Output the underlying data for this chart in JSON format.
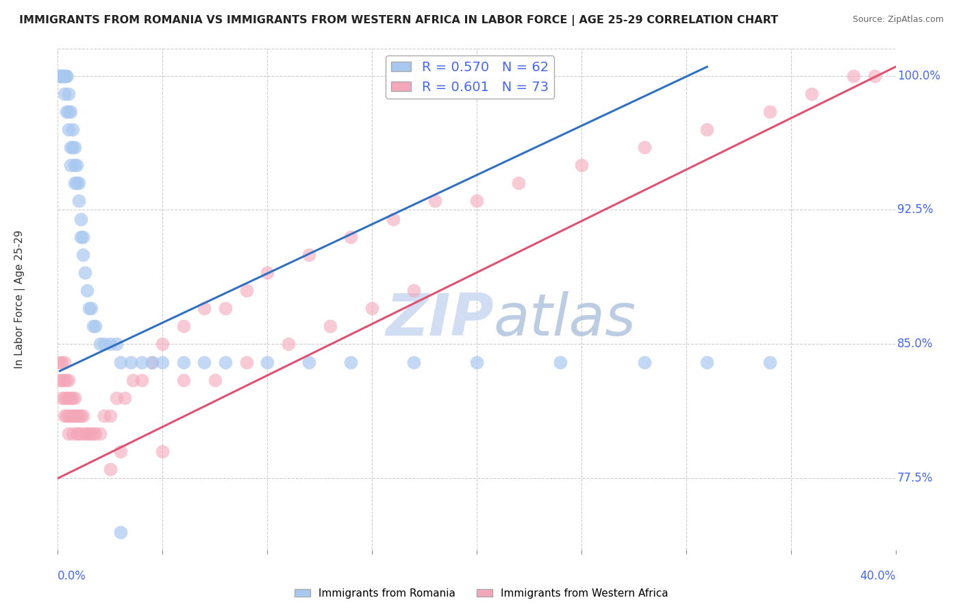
{
  "title": "IMMIGRANTS FROM ROMANIA VS IMMIGRANTS FROM WESTERN AFRICA IN LABOR FORCE | AGE 25-29 CORRELATION CHART",
  "source": "Source: ZipAtlas.com",
  "ylabel": "In Labor Force | Age 25-29",
  "xlim": [
    0.0,
    0.4
  ],
  "ylim": [
    0.735,
    1.015
  ],
  "romania_R": 0.57,
  "romania_N": 62,
  "western_africa_R": 0.601,
  "western_africa_N": 73,
  "romania_color": "#A8C8F0",
  "western_africa_color": "#F4A7B9",
  "romania_line_color": "#3070C0",
  "western_africa_line_color": "#E05070",
  "background_color": "#FFFFFF",
  "grid_color": "#CCCCCC",
  "axis_label_color": "#4466FF",
  "title_color": "#222222",
  "watermark_color": "#C8D8F0",
  "ytick_positions": [
    0.775,
    0.85,
    0.925,
    1.0
  ],
  "ytick_labels": [
    "77.5%",
    "85.0%",
    "92.5%",
    "100.0%"
  ],
  "romania_x": [
    0.001,
    0.001,
    0.001,
    0.002,
    0.002,
    0.002,
    0.002,
    0.002,
    0.003,
    0.003,
    0.003,
    0.003,
    0.004,
    0.004,
    0.004,
    0.005,
    0.005,
    0.005,
    0.006,
    0.006,
    0.006,
    0.007,
    0.007,
    0.008,
    0.008,
    0.008,
    0.009,
    0.009,
    0.01,
    0.01,
    0.011,
    0.011,
    0.012,
    0.012,
    0.013,
    0.014,
    0.015,
    0.016,
    0.017,
    0.018,
    0.02,
    0.022,
    0.025,
    0.028,
    0.03,
    0.035,
    0.04,
    0.045,
    0.05,
    0.06,
    0.07,
    0.08,
    0.1,
    0.12,
    0.14,
    0.17,
    0.2,
    0.24,
    0.28,
    0.31,
    0.34,
    0.03
  ],
  "romania_y": [
    1.0,
    1.0,
    1.0,
    1.0,
    1.0,
    1.0,
    1.0,
    1.0,
    1.0,
    1.0,
    1.0,
    0.99,
    1.0,
    1.0,
    0.98,
    0.99,
    0.98,
    0.97,
    0.96,
    0.98,
    0.95,
    0.97,
    0.96,
    0.96,
    0.95,
    0.94,
    0.95,
    0.94,
    0.94,
    0.93,
    0.92,
    0.91,
    0.91,
    0.9,
    0.89,
    0.88,
    0.87,
    0.87,
    0.86,
    0.86,
    0.85,
    0.85,
    0.85,
    0.85,
    0.84,
    0.84,
    0.84,
    0.84,
    0.84,
    0.84,
    0.84,
    0.84,
    0.84,
    0.84,
    0.84,
    0.84,
    0.84,
    0.84,
    0.84,
    0.84,
    0.84,
    0.745
  ],
  "western_africa_x": [
    0.001,
    0.001,
    0.002,
    0.002,
    0.002,
    0.003,
    0.003,
    0.003,
    0.003,
    0.004,
    0.004,
    0.004,
    0.005,
    0.005,
    0.005,
    0.005,
    0.006,
    0.006,
    0.007,
    0.007,
    0.007,
    0.008,
    0.008,
    0.009,
    0.009,
    0.01,
    0.01,
    0.011,
    0.011,
    0.012,
    0.013,
    0.014,
    0.015,
    0.016,
    0.017,
    0.018,
    0.02,
    0.022,
    0.025,
    0.028,
    0.032,
    0.036,
    0.04,
    0.045,
    0.05,
    0.06,
    0.07,
    0.08,
    0.09,
    0.1,
    0.12,
    0.14,
    0.16,
    0.18,
    0.2,
    0.22,
    0.25,
    0.28,
    0.31,
    0.34,
    0.36,
    0.38,
    0.39,
    0.05,
    0.03,
    0.025,
    0.06,
    0.075,
    0.09,
    0.11,
    0.13,
    0.15,
    0.17
  ],
  "western_africa_y": [
    0.84,
    0.83,
    0.84,
    0.83,
    0.82,
    0.84,
    0.83,
    0.82,
    0.81,
    0.83,
    0.82,
    0.81,
    0.83,
    0.82,
    0.81,
    0.8,
    0.82,
    0.81,
    0.82,
    0.81,
    0.8,
    0.82,
    0.81,
    0.81,
    0.8,
    0.81,
    0.8,
    0.81,
    0.8,
    0.81,
    0.8,
    0.8,
    0.8,
    0.8,
    0.8,
    0.8,
    0.8,
    0.81,
    0.81,
    0.82,
    0.82,
    0.83,
    0.83,
    0.84,
    0.85,
    0.86,
    0.87,
    0.87,
    0.88,
    0.89,
    0.9,
    0.91,
    0.92,
    0.93,
    0.93,
    0.94,
    0.95,
    0.96,
    0.97,
    0.98,
    0.99,
    1.0,
    1.0,
    0.79,
    0.79,
    0.78,
    0.83,
    0.83,
    0.84,
    0.85,
    0.86,
    0.87,
    0.88
  ],
  "romania_trend_x": [
    0.001,
    0.31
  ],
  "romania_trend_y": [
    0.835,
    1.005
  ],
  "western_africa_trend_x": [
    0.0,
    0.4
  ],
  "western_africa_trend_y": [
    0.775,
    1.005
  ]
}
